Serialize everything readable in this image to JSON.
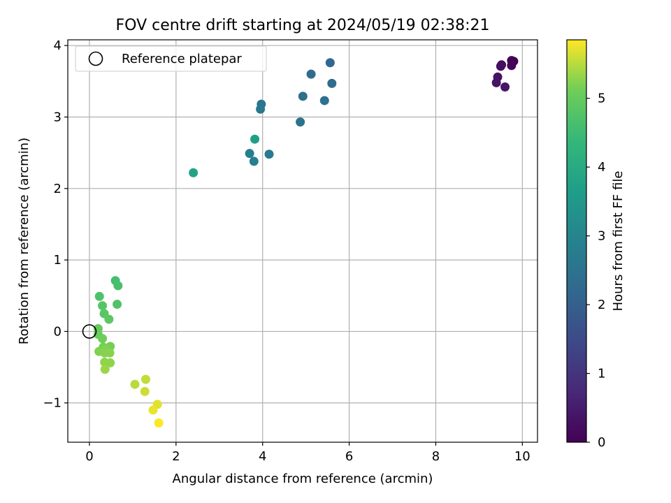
{
  "chart_data": {
    "type": "scatter",
    "title": "FOV centre drift starting at 2024/05/19 02:38:21",
    "xlabel": "Angular distance from reference (arcmin)",
    "ylabel": "Rotation from reference (arcmin)",
    "xlim": [
      -0.5,
      10.35
    ],
    "ylim": [
      -1.55,
      4.08
    ],
    "xticks": [
      0,
      2,
      4,
      6,
      8,
      10
    ],
    "xtick_labels": [
      "0",
      "2",
      "4",
      "6",
      "8",
      "10"
    ],
    "yticks": [
      -1,
      0,
      1,
      2,
      3,
      4
    ],
    "ytick_labels": [
      "−1",
      "0",
      "1",
      "2",
      "3",
      "4"
    ],
    "grid": true,
    "legend": {
      "placement": "top-left",
      "entries": [
        "Reference platepar"
      ]
    },
    "reference_point": {
      "x": 0,
      "y": 0,
      "marker": "open-circle"
    },
    "colormap": "viridis",
    "colorbar": {
      "label": "Hours from first FF file",
      "range": [
        0,
        5.85
      ],
      "ticks": [
        0,
        1,
        2,
        3,
        4,
        5
      ],
      "tick_labels": [
        "0",
        "1",
        "2",
        "3",
        "4",
        "5"
      ]
    },
    "points": [
      {
        "x": 9.8,
        "y": 3.78,
        "c": 0.0
      },
      {
        "x": 9.75,
        "y": 3.79,
        "c": 0.05
      },
      {
        "x": 9.75,
        "y": 3.72,
        "c": 0.1
      },
      {
        "x": 9.52,
        "y": 3.73,
        "c": 0.2
      },
      {
        "x": 9.5,
        "y": 3.71,
        "c": 0.25
      },
      {
        "x": 9.43,
        "y": 3.56,
        "c": 0.3
      },
      {
        "x": 9.4,
        "y": 3.48,
        "c": 0.35
      },
      {
        "x": 9.6,
        "y": 3.42,
        "c": 0.4
      },
      {
        "x": 5.56,
        "y": 3.76,
        "c": 2.2
      },
      {
        "x": 5.12,
        "y": 3.6,
        "c": 2.3
      },
      {
        "x": 5.6,
        "y": 3.47,
        "c": 2.3
      },
      {
        "x": 4.93,
        "y": 3.29,
        "c": 2.4
      },
      {
        "x": 5.43,
        "y": 3.23,
        "c": 2.45
      },
      {
        "x": 4.87,
        "y": 2.93,
        "c": 2.5
      },
      {
        "x": 3.97,
        "y": 3.18,
        "c": 2.6
      },
      {
        "x": 3.95,
        "y": 3.11,
        "c": 2.65
      },
      {
        "x": 4.15,
        "y": 2.48,
        "c": 2.7
      },
      {
        "x": 3.7,
        "y": 2.49,
        "c": 2.8
      },
      {
        "x": 3.8,
        "y": 2.38,
        "c": 2.85
      },
      {
        "x": 3.82,
        "y": 2.69,
        "c": 3.7
      },
      {
        "x": 2.4,
        "y": 2.22,
        "c": 3.8
      },
      {
        "x": 0.6,
        "y": 0.71,
        "c": 4.6
      },
      {
        "x": 0.66,
        "y": 0.64,
        "c": 4.65
      },
      {
        "x": 0.23,
        "y": 0.49,
        "c": 4.7
      },
      {
        "x": 0.64,
        "y": 0.38,
        "c": 4.75
      },
      {
        "x": 0.3,
        "y": 0.36,
        "c": 4.8
      },
      {
        "x": 0.34,
        "y": 0.25,
        "c": 4.85
      },
      {
        "x": 0.45,
        "y": 0.17,
        "c": 4.9
      },
      {
        "x": 0.2,
        "y": 0.04,
        "c": 5.0
      },
      {
        "x": 0.2,
        "y": -0.04,
        "c": 5.05
      },
      {
        "x": 0.3,
        "y": -0.1,
        "c": 5.1
      },
      {
        "x": 0.48,
        "y": -0.21,
        "c": 5.15
      },
      {
        "x": 0.32,
        "y": -0.22,
        "c": 5.15
      },
      {
        "x": 0.38,
        "y": -0.25,
        "c": 5.2
      },
      {
        "x": 0.22,
        "y": -0.28,
        "c": 5.2
      },
      {
        "x": 0.35,
        "y": -0.3,
        "c": 5.25
      },
      {
        "x": 0.47,
        "y": -0.3,
        "c": 5.25
      },
      {
        "x": 0.35,
        "y": -0.43,
        "c": 5.3
      },
      {
        "x": 0.48,
        "y": -0.44,
        "c": 5.3
      },
      {
        "x": 0.36,
        "y": -0.53,
        "c": 5.35
      },
      {
        "x": 1.05,
        "y": -0.74,
        "c": 5.5
      },
      {
        "x": 1.3,
        "y": -0.67,
        "c": 5.55
      },
      {
        "x": 1.28,
        "y": -0.84,
        "c": 5.6
      },
      {
        "x": 1.57,
        "y": -1.02,
        "c": 5.7
      },
      {
        "x": 1.47,
        "y": -1.1,
        "c": 5.75
      },
      {
        "x": 1.6,
        "y": -1.28,
        "c": 5.85
      }
    ]
  }
}
